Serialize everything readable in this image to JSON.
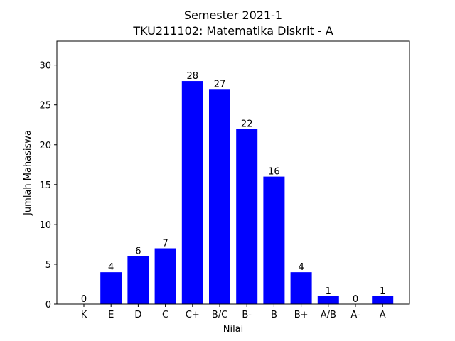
{
  "chart_data": {
    "type": "bar",
    "title": "Semester 2021-1",
    "subtitle": "TKU211102: Matematika Diskrit - A",
    "xlabel": "Nilai",
    "ylabel": "Jumlah Mahasiswa",
    "categories": [
      "K",
      "E",
      "D",
      "C",
      "C+",
      "B/C",
      "B-",
      "B",
      "B+",
      "A/B",
      "A-",
      "A"
    ],
    "values": [
      0,
      4,
      6,
      7,
      28,
      27,
      22,
      16,
      4,
      1,
      0,
      1
    ],
    "ylim": [
      0,
      33
    ],
    "yticks": [
      0,
      5,
      10,
      15,
      20,
      25,
      30
    ],
    "bar_color": "#0000ff",
    "grid": false,
    "legend": "none"
  }
}
